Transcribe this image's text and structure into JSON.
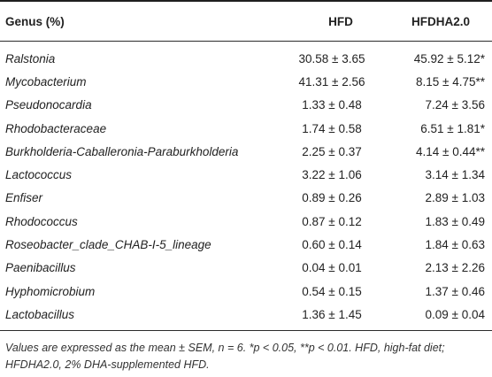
{
  "table": {
    "headers": {
      "genus": "Genus (%)",
      "hfd": "HFD",
      "hfdha": "HFDHA2.0"
    },
    "rows": [
      {
        "genus": "Ralstonia",
        "hfd": "30.58 ± 3.65",
        "hfdha": "45.92 ± 5.12*"
      },
      {
        "genus": "Mycobacterium",
        "hfd": "41.31 ± 2.56",
        "hfdha": "8.15 ± 4.75**"
      },
      {
        "genus": "Pseudonocardia",
        "hfd": "1.33 ± 0.48",
        "hfdha": "7.24 ± 3.56"
      },
      {
        "genus": "Rhodobacteraceae",
        "hfd": "1.74 ± 0.58",
        "hfdha": "6.51 ± 1.81*"
      },
      {
        "genus": "Burkholderia-Caballeronia-Paraburkholderia",
        "hfd": "2.25 ± 0.37",
        "hfdha": "4.14 ± 0.44**"
      },
      {
        "genus": "Lactococcus",
        "hfd": "3.22 ± 1.06",
        "hfdha": "3.14 ± 1.34"
      },
      {
        "genus": "Enfiser",
        "hfd": "0.89 ± 0.26",
        "hfdha": "2.89 ± 1.03"
      },
      {
        "genus": "Rhodococcus",
        "hfd": "0.87 ± 0.12",
        "hfdha": "1.83 ± 0.49"
      },
      {
        "genus": "Roseobacter_clade_CHAB-I-5_lineage",
        "hfd": "0.60 ± 0.14",
        "hfdha": "1.84 ± 0.63"
      },
      {
        "genus": "Paenibacillus",
        "hfd": "0.04 ± 0.01",
        "hfdha": "2.13 ± 2.26"
      },
      {
        "genus": "Hyphomicrobium",
        "hfd": "0.54 ± 0.15",
        "hfdha": "1.37 ± 0.46"
      },
      {
        "genus": "Lactobacillus",
        "hfd": "1.36 ± 1.45",
        "hfdha": "0.09 ± 0.04"
      }
    ],
    "footnote": "Values are expressed as the mean ± SEM, n = 6. *p < 0.05, **p < 0.01. HFD, high-fat diet; HFDHA2.0, 2% DHA-supplemented HFD."
  }
}
